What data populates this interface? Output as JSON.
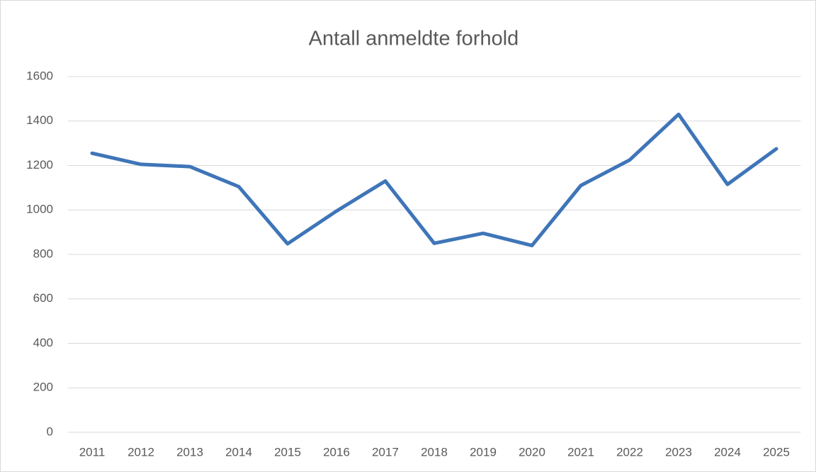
{
  "chart_data": {
    "type": "line",
    "title": "Antall anmeldte forhold",
    "categories": [
      "2011",
      "2012",
      "2013",
      "2014",
      "2015",
      "2016",
      "2017",
      "2018",
      "2019",
      "2020",
      "2021",
      "2022",
      "2023",
      "2024",
      "2025"
    ],
    "values": [
      1255,
      1205,
      1195,
      1105,
      848,
      995,
      1130,
      850,
      895,
      840,
      1110,
      1225,
      1430,
      1115,
      1275
    ],
    "color": "#3f75b8",
    "ylim": [
      0,
      1600
    ],
    "yticks": [
      0,
      200,
      400,
      600,
      800,
      1000,
      1200,
      1400,
      1600
    ],
    "grid": true
  }
}
